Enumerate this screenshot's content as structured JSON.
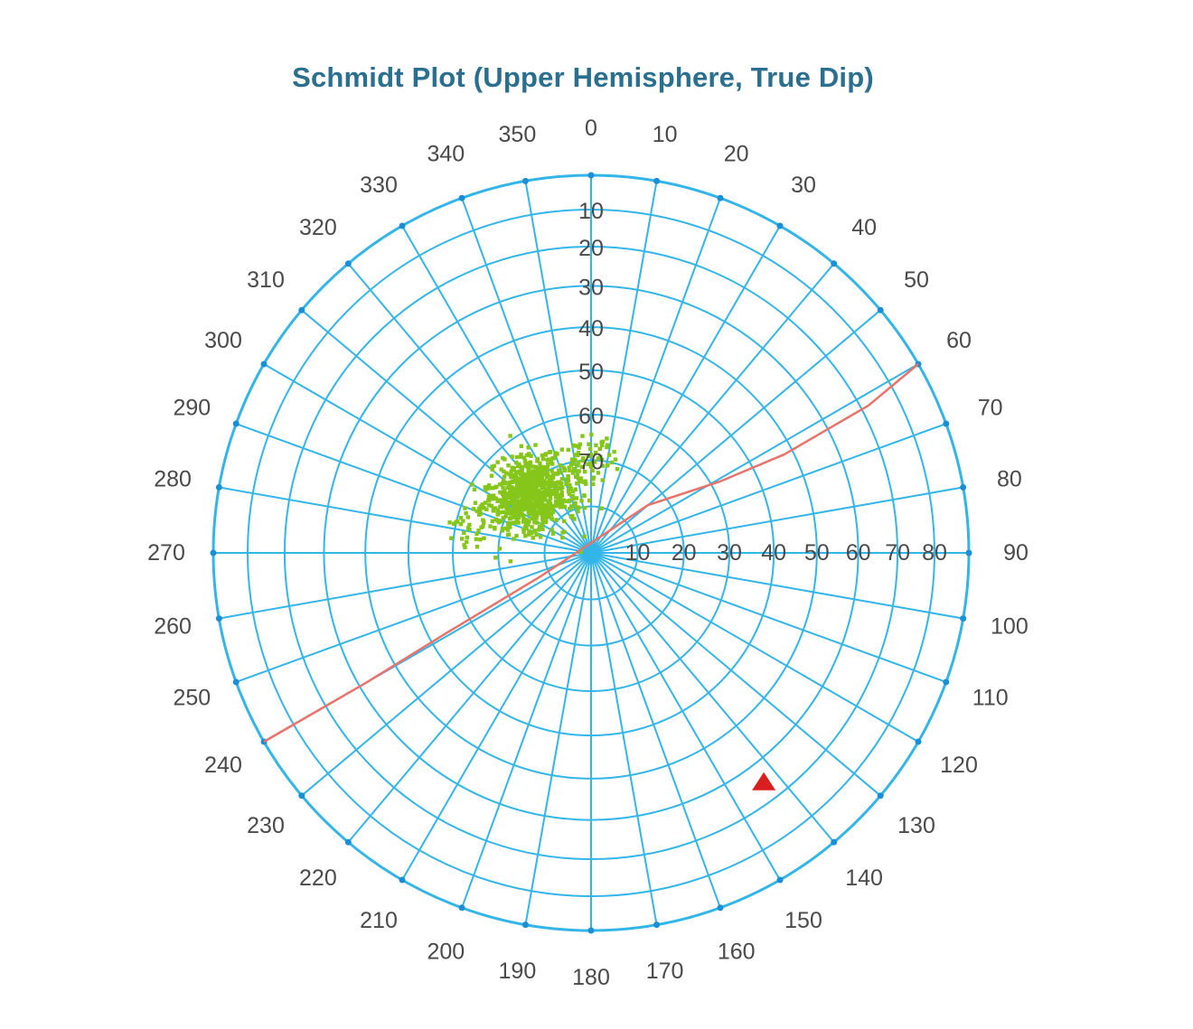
{
  "chart_data": {
    "type": "scatter",
    "title": "Schmidt Plot (Upper Hemisphere, True Dip)",
    "projection": "polar-equal-area",
    "azimuth_labels": [
      "0",
      "10",
      "20",
      "30",
      "40",
      "50",
      "60",
      "70",
      "80",
      "90",
      "100",
      "110",
      "120",
      "130",
      "140",
      "150",
      "160",
      "170",
      "180",
      "190",
      "200",
      "210",
      "220",
      "230",
      "240",
      "250",
      "260",
      "270",
      "280",
      "290",
      "300",
      "310",
      "320",
      "330",
      "340",
      "350"
    ],
    "dip_labels_vertical": [
      "10",
      "20",
      "30",
      "40",
      "50",
      "60",
      "70"
    ],
    "dip_labels_horizontal": [
      "10",
      "20",
      "30",
      "40",
      "50",
      "60",
      "70",
      "80"
    ],
    "grid": true,
    "colors": {
      "grid": "#33b5e8",
      "points": "#86c61a",
      "great_circle": "#e8736b",
      "marker": "#d81e1e",
      "title": "#2a6f8f"
    },
    "scatter_cluster": {
      "center_azimuth": 315,
      "center_dip": 18,
      "elongation_azimuth": 240,
      "count": 900
    },
    "great_circle": [
      {
        "azimuth": 60,
        "dip": 90
      },
      {
        "azimuth": 62,
        "dip": 72
      },
      {
        "azimuth": 63,
        "dip": 48
      },
      {
        "azimuth": 61,
        "dip": 32
      },
      {
        "azimuth": 50,
        "dip": 16
      },
      {
        "azimuth": 245,
        "dip": 12
      },
      {
        "azimuth": 241,
        "dip": 36
      },
      {
        "azimuth": 240,
        "dip": 58
      },
      {
        "azimuth": 240,
        "dip": 90
      }
    ],
    "marker": {
      "shape": "triangle",
      "azimuth": 143,
      "dip": 65
    }
  }
}
